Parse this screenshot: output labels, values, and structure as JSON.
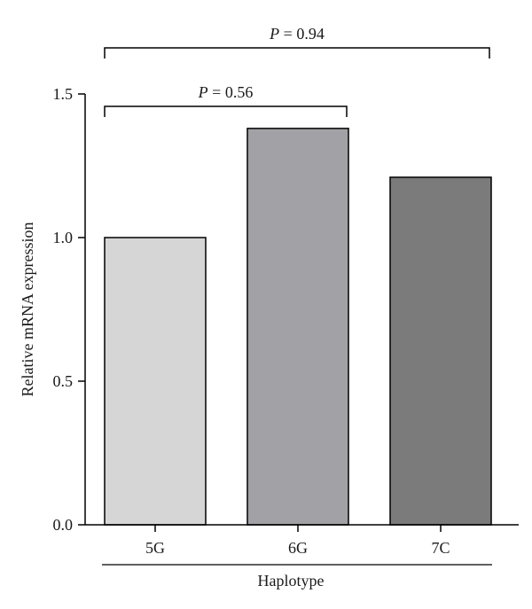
{
  "chart_data": {
    "type": "bar",
    "categories": [
      "5G",
      "6G",
      "7C"
    ],
    "values": [
      1.0,
      1.38,
      1.21
    ],
    "bar_colors": [
      "#d6d6d6",
      "#a2a2a6",
      "#7b7b7b"
    ],
    "xlabel": "Haplotype",
    "ylabel": "Relative mRNA expression",
    "ylim": [
      0,
      1.5
    ],
    "yticks": [
      "0.0",
      "0.5",
      "1.0",
      "1.5"
    ],
    "grid": false,
    "annotations": [
      {
        "from": "5G",
        "to": "6G",
        "p_symbol": "P",
        "p_value": "= 0.56"
      },
      {
        "from": "5G",
        "to": "7C",
        "p_symbol": "P",
        "p_value": "= 0.94"
      }
    ]
  }
}
